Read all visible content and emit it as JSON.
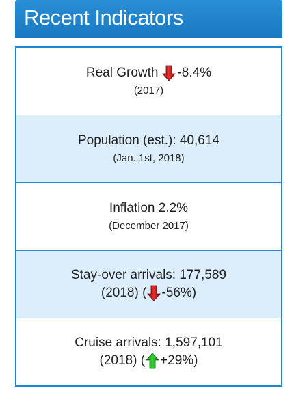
{
  "header": {
    "title": "Recent Indicators",
    "color": "#1f86cf"
  },
  "indicators": [
    {
      "label": "Real Growth",
      "value": "-8.4%",
      "period": "(2017)",
      "trend_icon": "down-arrow-icon",
      "trend_color": "#d62020"
    },
    {
      "label": "Population (est.): 40,614",
      "period": "(Jan. 1st, 2018)"
    },
    {
      "label": "Inflation 2.2%",
      "period": "(December 2017)"
    },
    {
      "label": "Stay-over arrivals: 177,589",
      "period_prefix": "(2018) (",
      "change": "-56%)",
      "trend_icon": "down-arrow-icon",
      "trend_color": "#d62020"
    },
    {
      "label": "Cruise arrivals: 1,597,101",
      "period_prefix": "(2018) (",
      "change": "+29%)",
      "trend_icon": "up-arrow-icon",
      "trend_color": "#22b022"
    }
  ]
}
